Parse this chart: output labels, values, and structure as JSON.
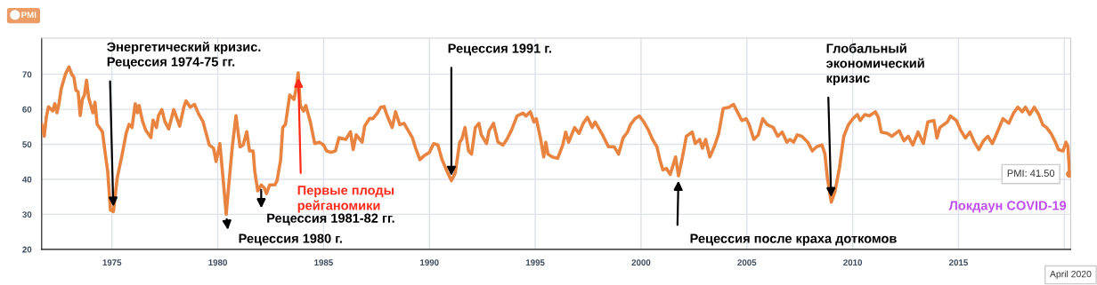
{
  "chart_data": {
    "type": "line",
    "x": [
      1971.68,
      1971.8,
      1971.9,
      1972.0,
      1972.2,
      1972.3,
      1972.4,
      1972.5,
      1972.6,
      1972.8,
      1972.97,
      1973.1,
      1973.2,
      1973.3,
      1973.4,
      1973.5,
      1973.6,
      1973.7,
      1973.8,
      1973.9,
      1974.1,
      1974.2,
      1974.3,
      1974.55,
      1974.65,
      1974.8,
      1974.93,
      1975.07,
      1975.25,
      1975.46,
      1975.67,
      1975.81,
      1975.95,
      1976.1,
      1976.2,
      1976.28,
      1976.45,
      1976.6,
      1976.84,
      1976.94,
      1977.1,
      1977.2,
      1977.36,
      1977.5,
      1977.68,
      1977.92,
      1978.2,
      1978.4,
      1978.5,
      1978.7,
      1978.9,
      1979.1,
      1979.3,
      1979.6,
      1979.8,
      1979.92,
      1980.1,
      1980.26,
      1980.4,
      1980.5,
      1980.68,
      1980.86,
      1981.05,
      1981.2,
      1981.37,
      1981.5,
      1981.67,
      1981.75,
      1981.89,
      1982.05,
      1982.2,
      1982.3,
      1982.45,
      1982.7,
      1982.8,
      1982.97,
      1983.07,
      1983.2,
      1983.4,
      1983.6,
      1983.7,
      1983.8,
      1983.9,
      1984.05,
      1984.16,
      1984.37,
      1984.58,
      1984.8,
      1985.0,
      1985.14,
      1985.35,
      1985.56,
      1985.73,
      1986.05,
      1986.27,
      1986.4,
      1986.54,
      1986.82,
      1986.94,
      1987.17,
      1987.33,
      1987.54,
      1987.7,
      1987.86,
      1987.96,
      1988.1,
      1988.24,
      1988.4,
      1988.6,
      1988.8,
      1989.0,
      1989.2,
      1989.35,
      1989.55,
      1989.76,
      1990.0,
      1990.2,
      1990.4,
      1990.6,
      1990.83,
      1991.04,
      1991.22,
      1991.43,
      1991.53,
      1991.68,
      1991.85,
      1991.99,
      1992.17,
      1992.34,
      1992.45,
      1992.7,
      1992.82,
      1993.03,
      1993.24,
      1993.48,
      1993.66,
      1993.87,
      1994.14,
      1994.42,
      1994.56,
      1994.77,
      1994.94,
      1995.05,
      1995.26,
      1995.4,
      1995.5,
      1995.6,
      1995.8,
      1996.06,
      1996.3,
      1996.44,
      1996.58,
      1996.86,
      1997.07,
      1997.27,
      1997.47,
      1997.69,
      1997.83,
      1998.18,
      1998.46,
      1998.73,
      1998.94,
      1999.15,
      1999.36,
      1999.5,
      1999.71,
      1999.92,
      2000.13,
      2000.33,
      2000.54,
      2000.75,
      2000.89,
      2001.03,
      2001.2,
      2001.38,
      2001.63,
      2001.77,
      2001.96,
      2002.14,
      2002.42,
      2002.56,
      2002.77,
      2002.9,
      2003.05,
      2003.25,
      2003.46,
      2003.67,
      2003.88,
      2004.16,
      2004.37,
      2004.55,
      2004.76,
      2004.97,
      2005.11,
      2005.33,
      2005.54,
      2005.75,
      2005.96,
      2006.25,
      2006.46,
      2006.67,
      2006.89,
      2007.03,
      2007.21,
      2007.38,
      2007.6,
      2007.88,
      2008.09,
      2008.3,
      2008.55,
      2008.69,
      2008.8,
      2008.99,
      2009.16,
      2009.37,
      2009.58,
      2009.8,
      2010.01,
      2010.22,
      2010.36,
      2010.57,
      2010.79,
      2011.07,
      2011.21,
      2011.35,
      2011.64,
      2011.85,
      2012.2,
      2012.42,
      2012.63,
      2012.84,
      2013.09,
      2013.34,
      2013.55,
      2013.84,
      2013.98,
      2014.12,
      2014.48,
      2014.62,
      2014.9,
      2015.11,
      2015.33,
      2015.54,
      2015.75,
      2015.96,
      2016.18,
      2016.39,
      2016.6,
      2016.81,
      2017.1,
      2017.38,
      2017.6,
      2017.8,
      2018.02,
      2018.16,
      2018.37,
      2018.58,
      2018.79,
      2018.98,
      2019.16,
      2019.37,
      2019.58,
      2019.72,
      2019.94,
      2020.08,
      2020.17,
      2020.25
    ],
    "series": [
      {
        "name": "PMI",
        "color": "#e8843f",
        "values": [
          55.7,
          52.3,
          57.8,
          60.7,
          59.5,
          61.6,
          59,
          61.6,
          65.8,
          70,
          72.1,
          70,
          69.2,
          65.4,
          65,
          58.2,
          62.8,
          64.1,
          68.3,
          63.3,
          59,
          62,
          55.7,
          53.6,
          48.9,
          42.2,
          31.2,
          30.8,
          40.5,
          46.4,
          53.1,
          55.7,
          54.8,
          61.6,
          59,
          61.1,
          56.5,
          54,
          51.9,
          56.9,
          54.8,
          58.2,
          59.9,
          56.5,
          54.4,
          59.9,
          55.2,
          60.7,
          62.4,
          60.6,
          61.4,
          58.6,
          56.5,
          49.8,
          48.9,
          45.1,
          50.2,
          39.6,
          30,
          37.1,
          48.9,
          58.2,
          49.3,
          49.8,
          53.6,
          48.1,
          48.1,
          42.2,
          36.7,
          38.4,
          37.5,
          35.9,
          38.4,
          38.4,
          39.6,
          45.5,
          54.8,
          55.7,
          64.1,
          62.8,
          65.8,
          70.4,
          61.1,
          59.5,
          61.1,
          56.5,
          50.2,
          50.6,
          49.8,
          48.1,
          47.7,
          48.1,
          51.9,
          51.4,
          53.6,
          48.5,
          52.7,
          50.6,
          55.2,
          57.4,
          57.3,
          58.9,
          60.6,
          60.8,
          58.9,
          56.8,
          54.8,
          59.3,
          55.6,
          56,
          53.9,
          51.8,
          48.9,
          45.6,
          46.8,
          47.7,
          50.2,
          49.8,
          45.6,
          42.3,
          39.6,
          41.8,
          50.6,
          51.4,
          54.8,
          48.1,
          47.2,
          54.8,
          56,
          52.7,
          50.2,
          53.9,
          56,
          50.6,
          49.8,
          51.4,
          53.9,
          58.1,
          58.9,
          58.1,
          59.3,
          56.4,
          57.3,
          51.4,
          46.4,
          50.6,
          47.2,
          46.4,
          46,
          49.8,
          53.5,
          50.6,
          54.8,
          53.1,
          56,
          57.7,
          54.8,
          56.4,
          52.7,
          49.3,
          49.3,
          47.2,
          51.8,
          53.5,
          55.6,
          57.3,
          58.1,
          56.4,
          54.3,
          51.4,
          49.3,
          45.6,
          42.7,
          43.1,
          41.4,
          46.4,
          41,
          46.4,
          52.3,
          53.5,
          50.2,
          51.4,
          48.9,
          51.4,
          46.4,
          49.3,
          53.1,
          60.2,
          60.6,
          61.4,
          59.3,
          56.8,
          57.3,
          55.6,
          51.4,
          52.7,
          57.3,
          55.6,
          54.8,
          52.3,
          53.5,
          50.6,
          51.4,
          50.6,
          52.7,
          52.3,
          50.6,
          48.1,
          49.3,
          49.8,
          47.2,
          40.6,
          33.5,
          36.4,
          43.1,
          52.3,
          55.6,
          57.3,
          58.5,
          56.8,
          58.5,
          58.1,
          59.3,
          57.7,
          53.5,
          53.1,
          52.3,
          53.9,
          51,
          52.3,
          49.8,
          53.5,
          50.2,
          56.4,
          56.8,
          51.8,
          54.8,
          56.4,
          58.1,
          56.8,
          53.9,
          51.8,
          53.5,
          50.6,
          48.5,
          51,
          52.3,
          50.2,
          53.1,
          57.3,
          56,
          58.9,
          60.6,
          59.3,
          60.6,
          58.5,
          60.6,
          58.5,
          55.6,
          54.8,
          53.1,
          50.6,
          48.5,
          48.1,
          50.6,
          49.3,
          41.5
        ]
      }
    ],
    "xlim": [
      1971.68,
      2020.3
    ],
    "ylim": [
      20,
      80.3
    ],
    "xticks": [
      1975,
      1980,
      1985,
      1990,
      1995,
      2000,
      2005,
      2010,
      2015,
      {
        "value": 2020,
        "label": null
      }
    ],
    "yticks": [
      20,
      30,
      40,
      50,
      60,
      70
    ],
    "grid": true,
    "legend": "top left",
    "marker": "none",
    "line_style": "solid",
    "annotations": [
      {
        "text": "Энергетический кризис.\nРецессия 1974-75 гг.",
        "x": 1975.07,
        "y": 30.8
      },
      {
        "text": "Рецессия 1980 г.",
        "x": 1980.4,
        "y": 30
      },
      {
        "text": "Рецессия 1981-82 гг.",
        "x": 1982.05,
        "y": 38.4
      },
      {
        "text": "Первые плоды\nрейганомики",
        "x": 1983.8,
        "y": 70.4
      },
      {
        "text": "Рецессия 1991 г.",
        "x": 1991.04,
        "y": 39.6
      },
      {
        "text": "Рецессия после краха доткомов",
        "x": 2001.77,
        "y": 41
      },
      {
        "text": "Глобальный\nэкономический\nкризис",
        "x": 2008.99,
        "y": 33.5
      },
      "Локдаун COVID-19",
      {
        "text": "PMI: 41.50",
        "x": 2020.25,
        "y": 41.5
      },
      "April 2020"
    ]
  }
}
